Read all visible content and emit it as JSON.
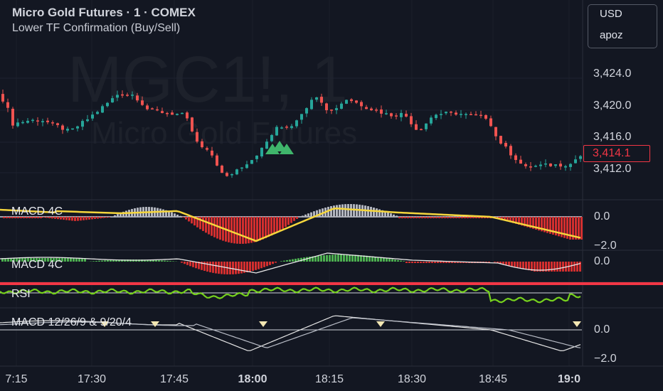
{
  "header": {
    "title": "Micro Gold Futures · 1 · COMEX",
    "subtitle": "Lower TF Confirmation (Buy/Sell)"
  },
  "currency": {
    "code": "USD",
    "unit": "apoz"
  },
  "watermark": {
    "symbol": "MGC1!, 1",
    "name": "Micro Gold Futures"
  },
  "price_axis": {
    "ticks": [
      "3,424.0",
      "3,420.0",
      "3,416.0",
      "3,412.0"
    ],
    "current": "3,414.1"
  },
  "indicators": [
    {
      "label": "MACD 4C",
      "ticks": [
        "0.0",
        "−2.0"
      ]
    },
    {
      "label": "MACD 4C",
      "ticks": [
        "0.0"
      ]
    },
    {
      "label": "RSI",
      "ticks": []
    },
    {
      "label": "MACD 12/26/9 & 9/20/4",
      "ticks": [
        "0.0",
        "−2.0"
      ]
    }
  ],
  "time_axis": [
    "7:15",
    "17:30",
    "17:45",
    "18:00",
    "18:15",
    "18:30",
    "18:45",
    "19:0"
  ],
  "colors": {
    "bull": "#26a69a",
    "bull_bright": "#4caf50",
    "bear": "#ef5350",
    "macd_line": "#f5d63d",
    "hist_pos": "#b2b5be",
    "hist_neg": "#d32f2f",
    "rsi_line": "#76d11d",
    "rsi_band": "#f23645",
    "signal_arrow": "#3fb56b",
    "marker": "#f3e7b3",
    "background": "#131722"
  },
  "signals": {
    "buy_arrow_count": 3,
    "macd_triangle_markers": 5
  }
}
